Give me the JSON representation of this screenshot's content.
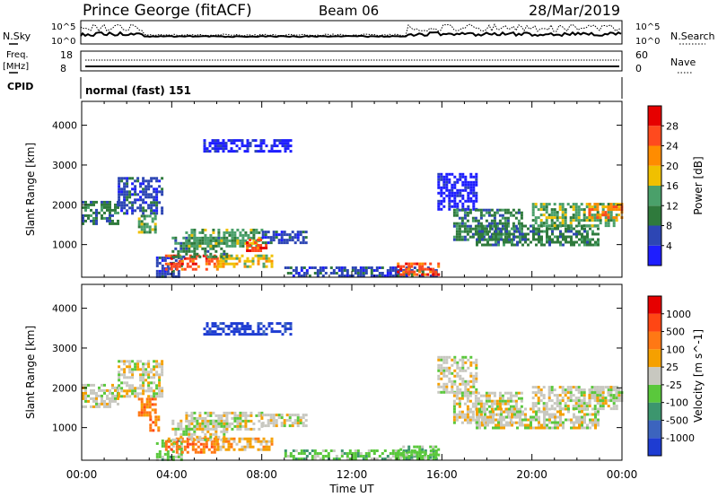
{
  "header": {
    "station": "Prince George (fitACF)",
    "beam": "Beam 06",
    "date": "28/Mar/2019"
  },
  "status": {
    "nsky_label": "N.Sky",
    "nsearch_label": "N.Search",
    "noise_ticks": [
      "10^5",
      "10^0"
    ],
    "freq_label_line1": "Freq.",
    "freq_label_line2": "[MHz]",
    "freq_ticks": [
      "18",
      "8"
    ],
    "nave_label": "Nave",
    "nave_ticks": [
      "60",
      "0"
    ],
    "cpid_label": "CPID",
    "cpid_value": "normal (fast) 151"
  },
  "chart_data": [
    {
      "type": "heatmap",
      "panel": "power",
      "xlabel": "Time UT",
      "ylabel": "Slant Range [km]",
      "x_ticks": [
        "00:00",
        "04:00",
        "08:00",
        "12:00",
        "16:00",
        "20:00",
        "00:00"
      ],
      "y_ticks": [
        1000,
        2000,
        3000,
        4000
      ],
      "y_range_km": [
        180,
        4600
      ],
      "colorbar": {
        "label": "Power [dB]",
        "ticks": [
          "4",
          "8",
          "12",
          "16",
          "20",
          "24",
          "28"
        ],
        "colors": [
          "#1e1eff",
          "#2d46b4",
          "#2f7a3c",
          "#4aa06a",
          "#f0c000",
          "#ff8c00",
          "#ff4a1e",
          "#e60000"
        ]
      },
      "regions": [
        {
          "t": [
            0.0,
            1.6
          ],
          "r": [
            1500,
            2100
          ],
          "level": 2
        },
        {
          "t": [
            1.6,
            3.6
          ],
          "r": [
            1800,
            2700
          ],
          "level": 1
        },
        {
          "t": [
            2.5,
            3.3
          ],
          "r": [
            1300,
            1750
          ],
          "level": 3
        },
        {
          "t": [
            3.3,
            4.4
          ],
          "r": [
            200,
            700
          ],
          "level": 1
        },
        {
          "t": [
            3.7,
            6.0
          ],
          "r": [
            350,
            750
          ],
          "level": 6
        },
        {
          "t": [
            6.0,
            8.5
          ],
          "r": [
            450,
            750
          ],
          "level": 4
        },
        {
          "t": [
            4.0,
            6.4
          ],
          "r": [
            700,
            1200
          ],
          "level": 2
        },
        {
          "t": [
            4.6,
            8.0
          ],
          "r": [
            950,
            1400
          ],
          "level": 3
        },
        {
          "t": [
            7.3,
            8.2
          ],
          "r": [
            850,
            1150
          ],
          "level": 6
        },
        {
          "t": [
            8.0,
            10.0
          ],
          "r": [
            1050,
            1350
          ],
          "level": 1
        },
        {
          "t": [
            5.4,
            9.3
          ],
          "r": [
            3350,
            3650
          ],
          "level": 0
        },
        {
          "t": [
            9.0,
            15.8
          ],
          "r": [
            200,
            450
          ],
          "level": 1
        },
        {
          "t": [
            14.0,
            15.8
          ],
          "r": [
            250,
            550
          ],
          "level": 6
        },
        {
          "t": [
            15.8,
            17.5
          ],
          "r": [
            1900,
            2800
          ],
          "level": 0
        },
        {
          "t": [
            16.5,
            19.5
          ],
          "r": [
            1100,
            1900
          ],
          "level": 2
        },
        {
          "t": [
            17.5,
            23.0
          ],
          "r": [
            1000,
            1500
          ],
          "level": 2
        },
        {
          "t": [
            20.0,
            23.8
          ],
          "r": [
            1450,
            2050
          ],
          "level": 3
        },
        {
          "t": [
            22.5,
            24.0
          ],
          "r": [
            1650,
            2050
          ],
          "level": 5
        }
      ]
    },
    {
      "type": "heatmap",
      "panel": "velocity",
      "xlabel": "Time UT",
      "ylabel": "Slant Range [km]",
      "x_ticks": [
        "00:00",
        "04:00",
        "08:00",
        "12:00",
        "16:00",
        "20:00",
        "00:00"
      ],
      "y_ticks": [
        1000,
        2000,
        3000,
        4000
      ],
      "y_range_km": [
        180,
        4600
      ],
      "colorbar": {
        "label": "Velocity [m s^-1]",
        "ticks": [
          "1000",
          "500",
          "100",
          "25",
          "-25",
          "-100",
          "-500",
          "-1000"
        ],
        "colors": [
          "#1e3cd2",
          "#3c64be",
          "#3c966e",
          "#5ac83c",
          "#c8c8c0",
          "#f5a000",
          "#ff7814",
          "#ff4614",
          "#e60000"
        ]
      },
      "regions": [
        {
          "t": [
            0.0,
            1.6
          ],
          "r": [
            1500,
            2100
          ],
          "level": 4
        },
        {
          "t": [
            1.6,
            3.6
          ],
          "r": [
            1800,
            2700
          ],
          "level": 4
        },
        {
          "t": [
            2.5,
            3.3
          ],
          "r": [
            1300,
            1750
          ],
          "level": 6
        },
        {
          "t": [
            3.0,
            3.4
          ],
          "r": [
            900,
            1300
          ],
          "level": 6
        },
        {
          "t": [
            3.3,
            4.4
          ],
          "r": [
            200,
            700
          ],
          "level": 3
        },
        {
          "t": [
            3.7,
            6.0
          ],
          "r": [
            350,
            750
          ],
          "level": 6
        },
        {
          "t": [
            6.0,
            8.5
          ],
          "r": [
            450,
            750
          ],
          "level": 5
        },
        {
          "t": [
            4.0,
            6.4
          ],
          "r": [
            700,
            1200
          ],
          "level": 4
        },
        {
          "t": [
            4.6,
            8.0
          ],
          "r": [
            950,
            1400
          ],
          "level": 4
        },
        {
          "t": [
            8.0,
            10.0
          ],
          "r": [
            1050,
            1350
          ],
          "level": 4
        },
        {
          "t": [
            5.4,
            9.3
          ],
          "r": [
            3350,
            3650
          ],
          "level": 0
        },
        {
          "t": [
            9.0,
            15.8
          ],
          "r": [
            200,
            450
          ],
          "level": 3
        },
        {
          "t": [
            14.0,
            15.8
          ],
          "r": [
            250,
            550
          ],
          "level": 3
        },
        {
          "t": [
            15.8,
            17.5
          ],
          "r": [
            1900,
            2800
          ],
          "level": 4
        },
        {
          "t": [
            16.5,
            19.5
          ],
          "r": [
            1100,
            1900
          ],
          "level": 4
        },
        {
          "t": [
            17.5,
            23.0
          ],
          "r": [
            1000,
            1500
          ],
          "level": 4
        },
        {
          "t": [
            20.0,
            23.8
          ],
          "r": [
            1450,
            2050
          ],
          "level": 4
        },
        {
          "t": [
            22.5,
            24.0
          ],
          "r": [
            1650,
            2050
          ],
          "level": 4
        }
      ]
    }
  ]
}
